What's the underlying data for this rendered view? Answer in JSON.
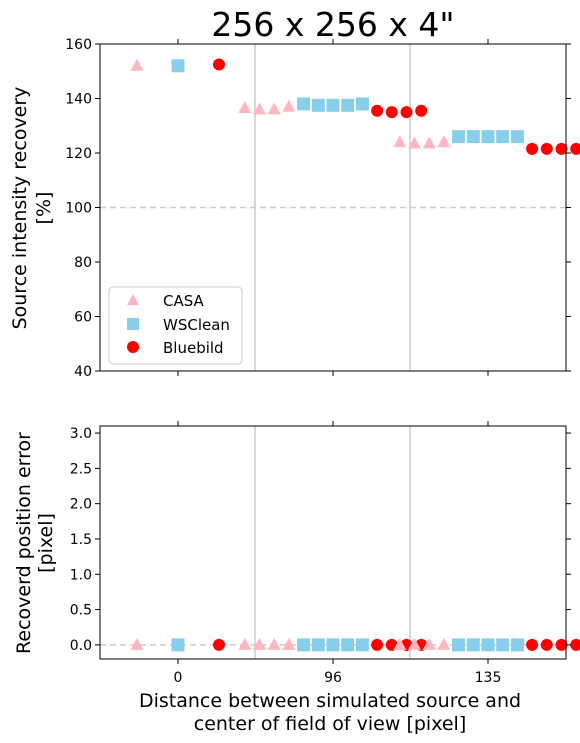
{
  "title": "256 x 256 x 4\"",
  "xlabel_line1": "Distance between simulated source and",
  "xlabel_line2": "center of field of view [pixel]",
  "colors": {
    "CASA": "#ffb6c1",
    "WSClean": "#87ceeb",
    "Bluebild": "#ff0000",
    "refline": "#cccccc",
    "separator": "#cccccc"
  },
  "x_ticks": [
    "0",
    "96",
    "135"
  ],
  "chart_data": [
    {
      "type": "scatter",
      "panel": "top",
      "ylabel_line1": "Source intensity recovery",
      "ylabel_line2": "[%]",
      "ylim": [
        40,
        160
      ],
      "y_ticks": [
        40,
        60,
        80,
        100,
        120,
        140,
        160
      ],
      "reference_line": 100,
      "x_groups": [
        "0",
        "96",
        "135"
      ],
      "legend": {
        "placement": "lower-left",
        "entries": [
          "CASA",
          "WSClean",
          "Bluebild"
        ]
      },
      "series": [
        {
          "name": "CASA",
          "marker": "triangle",
          "groups": [
            [
              152
            ],
            [
              136.5,
              136,
              136,
              137
            ],
            [
              124,
              123.5,
              123.5,
              124
            ]
          ]
        },
        {
          "name": "WSClean",
          "marker": "square",
          "groups": [
            [
              152
            ],
            [
              138,
              137.5,
              137.5,
              137.5,
              138
            ],
            [
              126,
              126,
              126,
              126,
              126
            ]
          ]
        },
        {
          "name": "Bluebild",
          "marker": "circle",
          "groups": [
            [
              152.5
            ],
            [
              135.5,
              135,
              135,
              135.5
            ],
            [
              121.5,
              121.5,
              121.5,
              121.5
            ]
          ]
        }
      ]
    },
    {
      "type": "scatter",
      "panel": "bottom",
      "ylabel_line1": "Recoverd position error",
      "ylabel_line2": "[pixel]",
      "ylim": [
        -0.2,
        3.1
      ],
      "y_ticks": [
        "0.0",
        "0.5",
        "1.0",
        "1.5",
        "2.0",
        "2.5",
        "3.0"
      ],
      "reference_line": 0,
      "x_groups": [
        "0",
        "96",
        "135"
      ],
      "series": [
        {
          "name": "CASA",
          "marker": "triangle",
          "groups": [
            [
              0
            ],
            [
              0,
              0,
              0,
              0
            ],
            [
              0,
              0,
              0,
              0
            ]
          ]
        },
        {
          "name": "WSClean",
          "marker": "square",
          "groups": [
            [
              0
            ],
            [
              0,
              0,
              0,
              0,
              0
            ],
            [
              0,
              0,
              0,
              0,
              0
            ]
          ]
        },
        {
          "name": "Bluebild",
          "marker": "circle",
          "groups": [
            [
              0
            ],
            [
              0,
              0,
              0,
              0
            ],
            [
              0,
              0,
              0,
              0
            ]
          ]
        }
      ]
    }
  ]
}
